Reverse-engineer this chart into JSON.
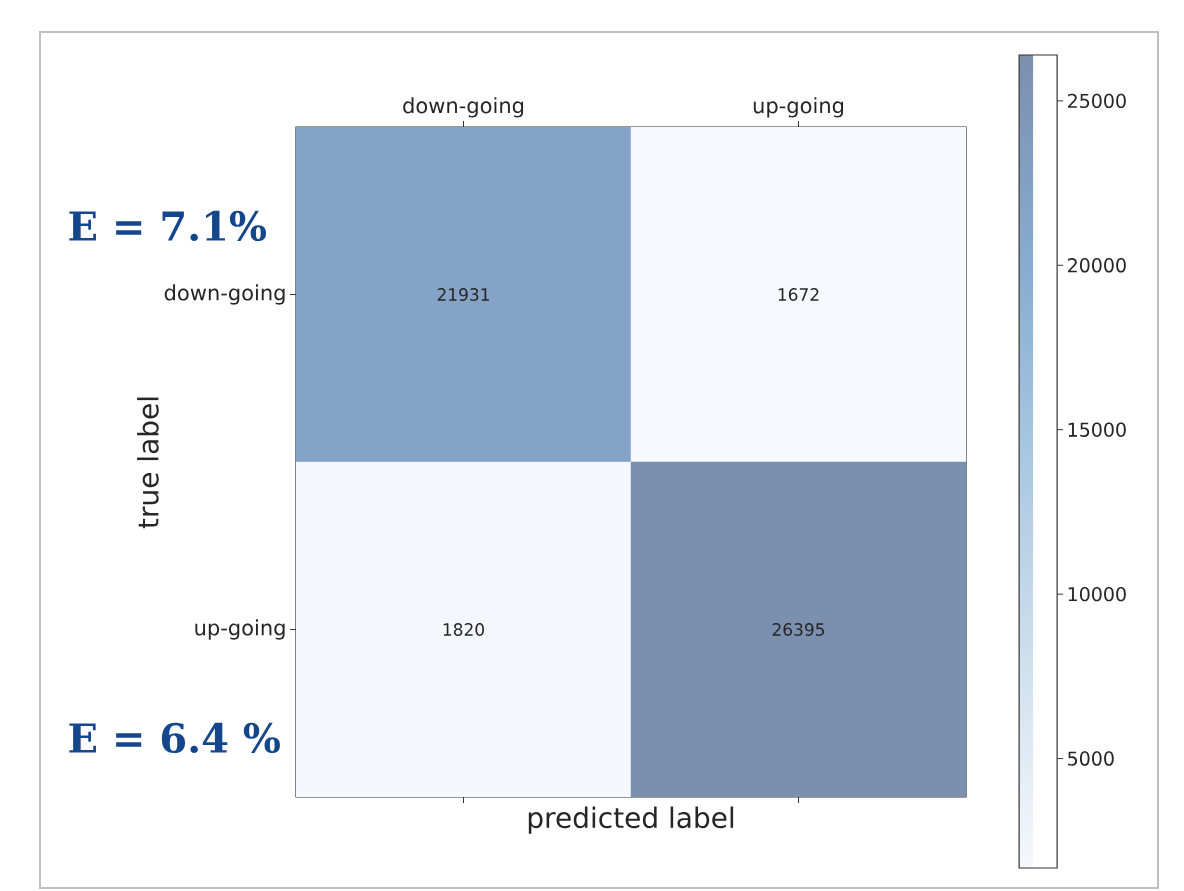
{
  "chart_data": {
    "type": "heatmap",
    "xlabel": "predicted label",
    "ylabel": "true label",
    "categories": [
      "down-going",
      "up-going"
    ],
    "y_categories": [
      "down-going",
      "up-going"
    ],
    "cells": [
      [
        21931,
        1672
      ],
      [
        1820,
        26395
      ]
    ],
    "data_labels": true,
    "clim": [
      1672,
      26395
    ],
    "cticks": [
      5000,
      10000,
      15000,
      20000,
      25000
    ],
    "annotations": [
      "E = 7.1%",
      "E = 6.4 %"
    ]
  }
}
